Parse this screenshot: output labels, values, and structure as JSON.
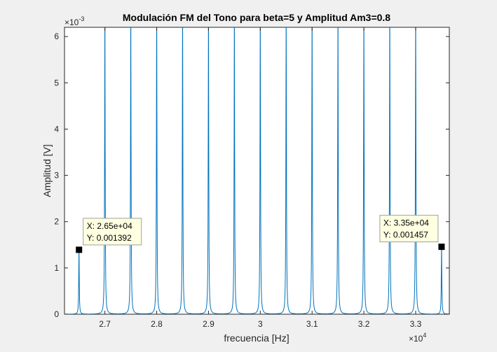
{
  "chart_data": {
    "type": "line",
    "title": "Modulación FM del Tono para beta=5 y Amplitud Am3=0.8",
    "xlabel": "frecuencia [Hz]",
    "ylabel": "Amplitud [V]",
    "x_exponent_label": "×10",
    "x_exponent": "4",
    "y_exponent_label": "×10",
    "y_exponent": "-3",
    "xlim": [
      26220,
      27000,
      33650
    ],
    "x_range": [
      26220,
      33650
    ],
    "y_range": [
      0,
      0.0062
    ],
    "x_ticks": [
      {
        "value": 27000,
        "label": "2.7"
      },
      {
        "value": 28000,
        "label": "2.8"
      },
      {
        "value": 29000,
        "label": "2.9"
      },
      {
        "value": 30000,
        "label": "3"
      },
      {
        "value": 31000,
        "label": "3.1"
      },
      {
        "value": 32000,
        "label": "3.2"
      },
      {
        "value": 33000,
        "label": "3.3"
      }
    ],
    "y_ticks": [
      {
        "value": 0,
        "label": "0"
      },
      {
        "value": 0.001,
        "label": "1"
      },
      {
        "value": 0.002,
        "label": "2"
      },
      {
        "value": 0.003,
        "label": "3"
      },
      {
        "value": 0.004,
        "label": "4"
      },
      {
        "value": 0.005,
        "label": "5"
      },
      {
        "value": 0.006,
        "label": "6"
      }
    ],
    "series": [
      {
        "color": "#0072bd",
        "peaks_x": [
          26500,
          27000,
          27500,
          28000,
          28500,
          29000,
          29500,
          30000,
          30500,
          31000,
          31500,
          32000,
          32500,
          33000,
          33500
        ],
        "peaks_y": [
          0.001392,
          0.0065,
          0.0065,
          0.0065,
          0.0065,
          0.0065,
          0.0065,
          0.0065,
          0.0065,
          0.0065,
          0.0065,
          0.0065,
          0.0065,
          0.0065,
          0.001457
        ]
      }
    ],
    "datatips": [
      {
        "x": 26500,
        "y": 0.001392,
        "x_text": "X: 2.65e+04",
        "y_text": "Y: 0.001392"
      },
      {
        "x": 33500,
        "y": 0.001457,
        "x_text": "X: 3.35e+04",
        "y_text": "Y: 0.001457"
      }
    ],
    "grid": false
  }
}
